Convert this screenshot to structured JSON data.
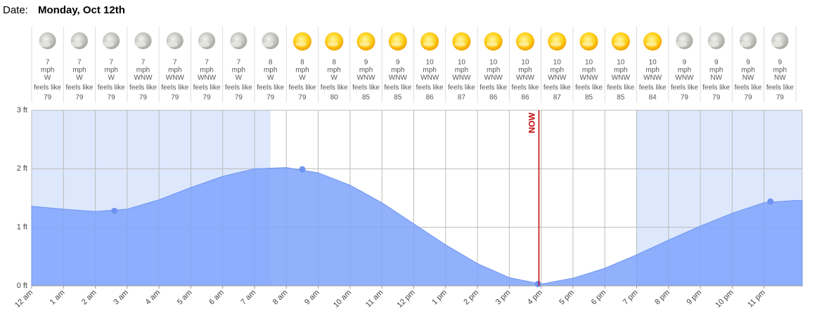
{
  "date_label": "Date:",
  "date": "Monday, Oct 12th",
  "hourly": {
    "wind_unit": "mph",
    "feels_label": "feels like",
    "icons": [
      "moon-cloud",
      "moon-cloud",
      "moon-cloud",
      "moon-cloud",
      "moon-cloud",
      "moon-cloud",
      "moon-cloud",
      "moon-cloud",
      "sun",
      "sun",
      "sun",
      "sun",
      "sun",
      "sun",
      "sun",
      "sun",
      "sun",
      "sun",
      "sun",
      "sun",
      "moon-cloud",
      "moon-cloud",
      "moon-cloud",
      "moon-cloud"
    ],
    "speeds": [
      7,
      7,
      7,
      7,
      7,
      7,
      7,
      8,
      8,
      8,
      9,
      9,
      10,
      10,
      10,
      10,
      10,
      10,
      10,
      10,
      9,
      9,
      9,
      9
    ],
    "directions": [
      "W",
      "W",
      "W",
      "WNW",
      "WNW",
      "WNW",
      "W",
      "W",
      "W",
      "W",
      "WNW",
      "WNW",
      "WNW",
      "WNW",
      "WNW",
      "WNW",
      "WNW",
      "WNW",
      "WNW",
      "WNW",
      "WNW",
      "NW",
      "NW",
      "NW"
    ],
    "feels": [
      79,
      79,
      79,
      79,
      79,
      79,
      79,
      79,
      79,
      80,
      85,
      85,
      86,
      87,
      86,
      86,
      87,
      85,
      85,
      84,
      79,
      79,
      79,
      79
    ]
  },
  "chart_data": {
    "type": "area",
    "color": "#7fa3fb",
    "night_color": "#dde8fd",
    "grid": true,
    "x": [
      0,
      1,
      2,
      3,
      4,
      5,
      6,
      7,
      8,
      9,
      10,
      11,
      12,
      13,
      14,
      15,
      16,
      17,
      18,
      19,
      20,
      21,
      22,
      23,
      24,
      24.2
    ],
    "values": [
      1.36,
      1.31,
      1.27,
      1.31,
      1.47,
      1.68,
      1.87,
      2.0,
      2.02,
      1.93,
      1.72,
      1.42,
      1.06,
      0.7,
      0.38,
      0.14,
      0.03,
      0.13,
      0.3,
      0.53,
      0.78,
      1.02,
      1.24,
      1.42,
      1.46,
      1.46
    ],
    "extremes": {
      "x": [
        2.6,
        8.5,
        15.9,
        23.2
      ],
      "values": [
        1.28,
        1.99,
        0.03,
        1.44
      ],
      "color": "#6d93f2"
    },
    "night": [
      [
        0,
        7.5
      ],
      [
        19.0,
        24.2
      ]
    ],
    "now": {
      "x": 15.93,
      "label": "NOW",
      "color": "#c00000"
    },
    "xlim": [
      0,
      24.2
    ],
    "ylim": [
      0,
      3
    ],
    "xticks": [
      {
        "value": 0,
        "label": "12 am"
      },
      {
        "value": 1,
        "label": "1 am"
      },
      {
        "value": 2,
        "label": "2 am"
      },
      {
        "value": 3,
        "label": "3 am"
      },
      {
        "value": 4,
        "label": "4 am"
      },
      {
        "value": 5,
        "label": "5 am"
      },
      {
        "value": 6,
        "label": "6 am"
      },
      {
        "value": 7,
        "label": "7 am"
      },
      {
        "value": 8,
        "label": "8 am"
      },
      {
        "value": 9,
        "label": "9 am"
      },
      {
        "value": 10,
        "label": "10 am"
      },
      {
        "value": 11,
        "label": "11 am"
      },
      {
        "value": 12,
        "label": "12 pm"
      },
      {
        "value": 13,
        "label": "1 pm"
      },
      {
        "value": 14,
        "label": "2 pm"
      },
      {
        "value": 15,
        "label": "3 pm"
      },
      {
        "value": 16,
        "label": "4 pm"
      },
      {
        "value": 17,
        "label": "5 pm"
      },
      {
        "value": 18,
        "label": "6 pm"
      },
      {
        "value": 19,
        "label": "7 pm"
      },
      {
        "value": 20,
        "label": "8 pm"
      },
      {
        "value": 21,
        "label": "9 pm"
      },
      {
        "value": 22,
        "label": "10 pm"
      },
      {
        "value": 23,
        "label": "11 pm"
      }
    ],
    "yticks": [
      {
        "value": 0,
        "label": "0 ft"
      },
      {
        "value": 1,
        "label": "1 ft"
      },
      {
        "value": 2,
        "label": "2 ft"
      },
      {
        "value": 3,
        "label": "3 ft"
      }
    ]
  }
}
